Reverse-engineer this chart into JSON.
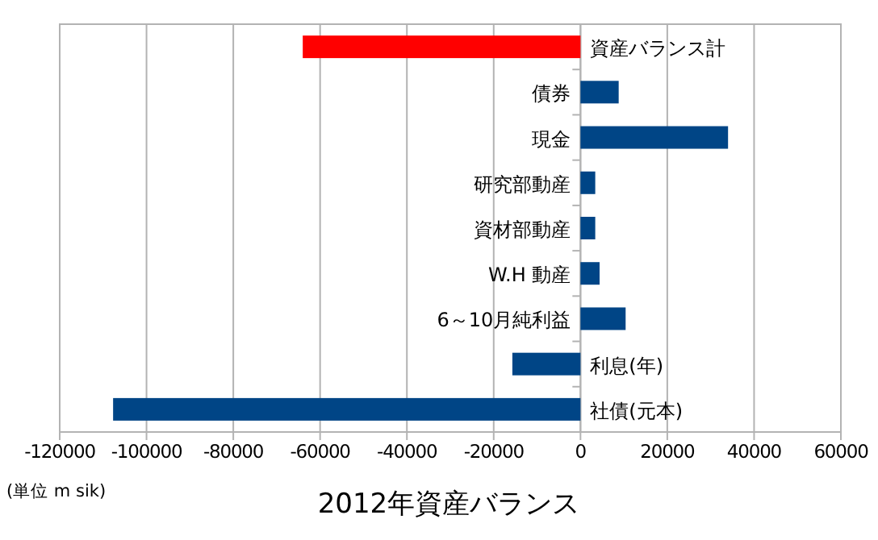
{
  "chart_data": {
    "type": "bar",
    "orientation": "horizontal",
    "title": "2012年資産バランス",
    "categories": [
      "資産バランス計",
      "債券",
      "現金",
      "研究部動産",
      "資材部動産",
      "W.H 動産",
      "6～10月純利益",
      "利息(年)",
      "社債(元本)"
    ],
    "values": [
      -64000,
      8800,
      34000,
      3400,
      3400,
      4400,
      10400,
      -15700,
      -107700
    ],
    "colors": [
      "#ff0000",
      "#004586",
      "#004586",
      "#004586",
      "#004586",
      "#004586",
      "#004586",
      "#004586",
      "#004586"
    ],
    "xlim": [
      -120000,
      60000
    ],
    "xticks": [
      -120000,
      -100000,
      -80000,
      -60000,
      -40000,
      -20000,
      0,
      20000,
      40000,
      60000
    ],
    "grid": "x",
    "annotations": [
      "(単位 m sik)"
    ]
  }
}
